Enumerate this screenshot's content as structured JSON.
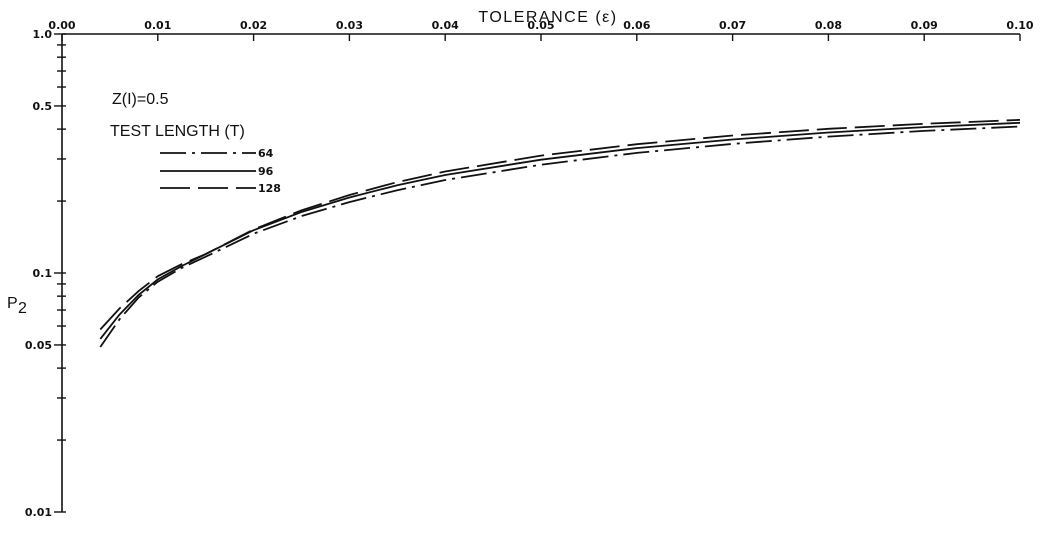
{
  "chart_data": {
    "type": "line",
    "xlabel": "TOLERANCE (ε)",
    "ylabel": "P₂",
    "x_axis_position": "top",
    "xlim": [
      0,
      0.1
    ],
    "ylim": [
      0.01,
      1.0
    ],
    "yscale": "log",
    "x_ticks": [
      0.0,
      0.01,
      0.02,
      0.03,
      0.04,
      0.05,
      0.06,
      0.07,
      0.08,
      0.09,
      0.1
    ],
    "x_tick_labels": [
      "0.00",
      "0.01",
      "0.02",
      "0.03",
      "0.04",
      "0.05",
      "0.06",
      "0.07",
      "0.08",
      "0.09",
      "0.10"
    ],
    "y_tick_labels": [
      {
        "value": 1.0,
        "label": "1.0"
      },
      {
        "value": 0.5,
        "label": "0.5"
      },
      {
        "value": 0.1,
        "label": "0.1"
      },
      {
        "value": 0.05,
        "label": "0.05"
      },
      {
        "value": 0.01,
        "label": "0.01"
      }
    ],
    "y_minor_ticks": [
      0.9,
      0.8,
      0.7,
      0.6,
      0.4,
      0.3,
      0.2,
      0.09,
      0.08,
      0.07,
      0.06,
      0.04,
      0.03,
      0.02
    ],
    "grid": false,
    "annotations": [
      "Z(I)=0.5",
      "TEST LENGTH (T)"
    ],
    "legend_position": "upper-left",
    "x": [
      0.004,
      0.006,
      0.008,
      0.01,
      0.0125,
      0.015,
      0.02,
      0.025,
      0.03,
      0.035,
      0.04,
      0.05,
      0.06,
      0.07,
      0.08,
      0.09,
      0.1
    ],
    "series": [
      {
        "name": "64",
        "style": "dash-dot",
        "values": [
          0.049,
          0.064,
          0.079,
          0.092,
          0.105,
          0.117,
          0.146,
          0.173,
          0.198,
          0.222,
          0.245,
          0.284,
          0.318,
          0.347,
          0.372,
          0.393,
          0.41
        ]
      },
      {
        "name": "96",
        "style": "solid",
        "values": [
          0.053,
          0.067,
          0.081,
          0.094,
          0.107,
          0.12,
          0.151,
          0.18,
          0.207,
          0.233,
          0.257,
          0.298,
          0.333,
          0.362,
          0.387,
          0.408,
          0.425
        ]
      },
      {
        "name": "128",
        "style": "long-dash",
        "values": [
          0.058,
          0.071,
          0.084,
          0.097,
          0.109,
          0.12,
          0.152,
          0.183,
          0.212,
          0.24,
          0.266,
          0.31,
          0.346,
          0.376,
          0.401,
          0.421,
          0.437
        ]
      }
    ]
  }
}
